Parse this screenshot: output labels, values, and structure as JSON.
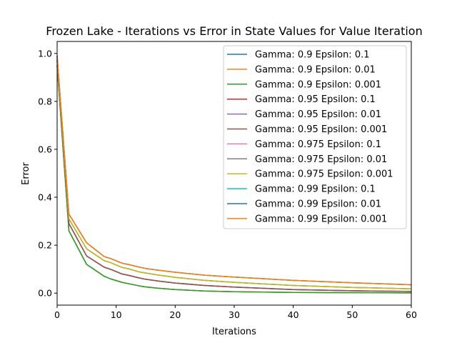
{
  "chart_data": {
    "type": "line",
    "title": "Frozen Lake - Iterations vs Error in State Values for Value Iteration",
    "xlabel": "Iterations",
    "ylabel": "Error",
    "xlim": [
      0,
      60
    ],
    "ylim": [
      -0.05,
      1.05
    ],
    "xticks": [
      "0",
      "10",
      "20",
      "30",
      "40",
      "50",
      "60"
    ],
    "yticks": [
      "0.0",
      "0.2",
      "0.4",
      "0.6",
      "0.8",
      "1.0"
    ],
    "grid": false,
    "legend_position": "top-right",
    "x": [
      0,
      2,
      5,
      8,
      9,
      11,
      12,
      14,
      15,
      17,
      20,
      25,
      30,
      40,
      50,
      60
    ],
    "series": [
      {
        "name": "Gamma: 0.9 Epsilon: 0.1",
        "color": "#1f77b4",
        "values": [
          0.95,
          0.26,
          0.12,
          0.07,
          0.06,
          0.045,
          0.04,
          0.03,
          0.026,
          0.021,
          0.015,
          0.009,
          0.006,
          0.003,
          0.002,
          0.001
        ]
      },
      {
        "name": "Gamma: 0.9 Epsilon: 0.01",
        "color": "#ff7f0e",
        "values": [
          0.95,
          0.26,
          0.12,
          0.07,
          0.06,
          0.045,
          0.04,
          0.03,
          0.026,
          0.021,
          0.015,
          0.009,
          0.006,
          0.003,
          0.002,
          0.001
        ]
      },
      {
        "name": "Gamma: 0.9 Epsilon: 0.001",
        "color": "#2ca02c",
        "values": [
          0.95,
          0.26,
          0.12,
          0.07,
          0.06,
          0.045,
          0.04,
          0.03,
          0.026,
          0.021,
          0.015,
          0.009,
          0.006,
          0.003,
          0.002,
          0.001
        ]
      },
      {
        "name": "Gamma: 0.95 Epsilon: 0.1",
        "color": "#d62728",
        "values": [
          0.97,
          0.29,
          0.155,
          0.108,
          0.1,
          0.08,
          0.075,
          0.063,
          0.058,
          0.051,
          0.042,
          0.032,
          0.025,
          0.015,
          0.01,
          0.007
        ]
      },
      {
        "name": "Gamma: 0.95 Epsilon: 0.01",
        "color": "#9467bd",
        "values": [
          0.97,
          0.29,
          0.155,
          0.108,
          0.1,
          0.08,
          0.075,
          0.063,
          0.058,
          0.051,
          0.042,
          0.032,
          0.025,
          0.015,
          0.01,
          0.007
        ]
      },
      {
        "name": "Gamma: 0.95 Epsilon: 0.001",
        "color": "#8c564b",
        "values": [
          0.97,
          0.29,
          0.155,
          0.108,
          0.1,
          0.08,
          0.075,
          0.063,
          0.058,
          0.051,
          0.042,
          0.032,
          0.025,
          0.015,
          0.01,
          0.007
        ]
      },
      {
        "name": "Gamma: 0.975 Epsilon: 0.1",
        "color": "#e377c2",
        "values": [
          0.98,
          0.31,
          0.185,
          0.135,
          0.128,
          0.107,
          0.102,
          0.088,
          0.084,
          0.076,
          0.066,
          0.053,
          0.045,
          0.032,
          0.024,
          0.018
        ]
      },
      {
        "name": "Gamma: 0.975 Epsilon: 0.01",
        "color": "#7f7f7f",
        "values": [
          0.98,
          0.31,
          0.185,
          0.135,
          0.128,
          0.107,
          0.102,
          0.088,
          0.084,
          0.076,
          0.066,
          0.053,
          0.045,
          0.032,
          0.024,
          0.018
        ]
      },
      {
        "name": "Gamma: 0.975 Epsilon: 0.001",
        "color": "#bcbd22",
        "values": [
          0.98,
          0.31,
          0.185,
          0.135,
          0.128,
          0.107,
          0.102,
          0.088,
          0.084,
          0.076,
          0.066,
          0.053,
          0.045,
          0.032,
          0.024,
          0.018
        ]
      },
      {
        "name": "Gamma: 0.99 Epsilon: 0.1",
        "color": "#17becf",
        "values": [
          0.99,
          0.33,
          0.21,
          0.152,
          0.145,
          0.125,
          0.12,
          0.108,
          0.103,
          0.096,
          0.087,
          0.075,
          0.067,
          0.053,
          0.043,
          0.035
        ]
      },
      {
        "name": "Gamma: 0.99 Epsilon: 0.01",
        "color": "#1f77b4",
        "values": [
          0.99,
          0.33,
          0.21,
          0.152,
          0.145,
          0.125,
          0.12,
          0.108,
          0.103,
          0.096,
          0.087,
          0.075,
          0.067,
          0.053,
          0.043,
          0.035
        ]
      },
      {
        "name": "Gamma: 0.99 Epsilon: 0.001",
        "color": "#ff7f0e",
        "values": [
          0.99,
          0.33,
          0.21,
          0.152,
          0.145,
          0.125,
          0.12,
          0.108,
          0.103,
          0.096,
          0.087,
          0.075,
          0.067,
          0.053,
          0.043,
          0.035
        ]
      }
    ]
  }
}
